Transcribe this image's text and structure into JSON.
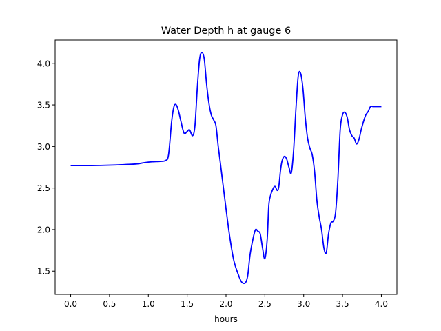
{
  "chart_data": {
    "type": "line",
    "title": "Water Depth h at gauge 6",
    "xlabel": "hours",
    "ylabel": "",
    "xlim": [
      -0.2,
      4.2
    ],
    "ylim": [
      1.22,
      4.28
    ],
    "xticks": [
      0.0,
      0.5,
      1.0,
      1.5,
      2.0,
      2.5,
      3.0,
      3.5,
      4.0
    ],
    "xtick_labels": [
      "0.0",
      "0.5",
      "1.0",
      "1.5",
      "2.0",
      "2.5",
      "3.0",
      "3.5",
      "4.0"
    ],
    "yticks": [
      1.5,
      2.0,
      2.5,
      3.0,
      3.5,
      4.0
    ],
    "ytick_labels": [
      "1.5",
      "2.0",
      "2.5",
      "3.0",
      "3.5",
      "4.0"
    ],
    "grid": false,
    "series": [
      {
        "color": "#0000ff",
        "x": [
          0.0,
          0.25,
          0.5,
          0.65,
          0.85,
          0.95,
          1.05,
          1.15,
          1.22,
          1.26,
          1.3,
          1.33,
          1.36,
          1.39,
          1.42,
          1.46,
          1.5,
          1.53,
          1.57,
          1.6,
          1.63,
          1.66,
          1.69,
          1.72,
          1.75,
          1.78,
          1.81,
          1.84,
          1.87,
          1.9,
          1.93,
          1.96,
          2.0,
          2.05,
          2.1,
          2.15,
          2.2,
          2.25,
          2.28,
          2.31,
          2.35,
          2.38,
          2.41,
          2.44,
          2.47,
          2.5,
          2.53,
          2.55,
          2.57,
          2.6,
          2.63,
          2.66,
          2.68,
          2.7,
          2.72,
          2.75,
          2.78,
          2.81,
          2.84,
          2.87,
          2.9,
          2.93,
          2.96,
          2.99,
          3.02,
          3.05,
          3.08,
          3.11,
          3.14,
          3.17,
          3.2,
          3.23,
          3.26,
          3.29,
          3.32,
          3.35,
          3.38,
          3.41,
          3.44,
          3.47,
          3.5,
          3.53,
          3.56,
          3.59,
          3.62,
          3.65,
          3.68,
          3.71,
          3.74,
          3.77,
          3.8,
          3.83,
          3.86,
          3.89,
          3.92,
          3.95,
          3.98,
          4.0
        ],
        "y": [
          2.77,
          2.77,
          2.775,
          2.78,
          2.79,
          2.805,
          2.815,
          2.82,
          2.83,
          2.9,
          3.3,
          3.48,
          3.5,
          3.42,
          3.3,
          3.16,
          3.18,
          3.2,
          3.13,
          3.25,
          3.7,
          4.05,
          4.13,
          4.05,
          3.75,
          3.52,
          3.38,
          3.32,
          3.25,
          3.0,
          2.78,
          2.55,
          2.25,
          1.9,
          1.63,
          1.48,
          1.37,
          1.36,
          1.45,
          1.7,
          1.9,
          2.0,
          1.98,
          1.95,
          1.78,
          1.65,
          1.88,
          2.28,
          2.4,
          2.48,
          2.52,
          2.47,
          2.52,
          2.7,
          2.82,
          2.88,
          2.85,
          2.75,
          2.68,
          2.95,
          3.45,
          3.85,
          3.88,
          3.7,
          3.35,
          3.1,
          2.98,
          2.9,
          2.7,
          2.35,
          2.15,
          2.0,
          1.78,
          1.72,
          1.95,
          2.08,
          2.1,
          2.2,
          2.6,
          3.2,
          3.38,
          3.41,
          3.35,
          3.2,
          3.13,
          3.1,
          3.03,
          3.08,
          3.2,
          3.3,
          3.38,
          3.42,
          3.48,
          3.48,
          3.48,
          3.48,
          3.48,
          3.48
        ]
      }
    ]
  }
}
